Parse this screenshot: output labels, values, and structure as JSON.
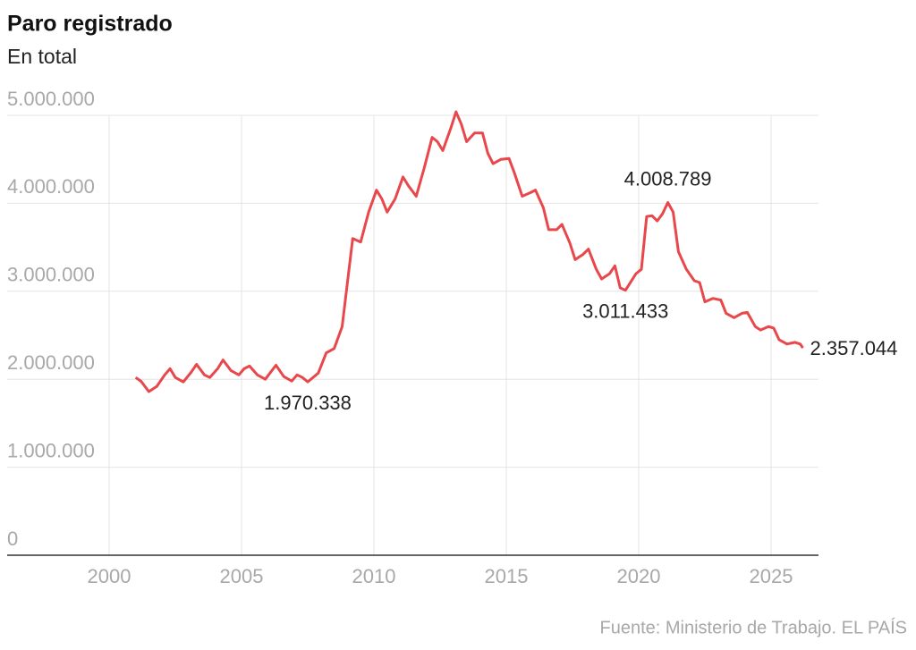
{
  "chart_data": {
    "type": "line",
    "title": "Paro registrado",
    "subtitle": "En total",
    "source": "Fuente: Ministerio de Trabajo. EL PAÍS",
    "color": "#e8474b",
    "xlim": [
      1996.15,
      2026.79
    ],
    "xticks": [
      2000,
      2005,
      2010,
      2015,
      2020,
      2025
    ],
    "ylim": [
      0,
      5000000
    ],
    "yticks": [
      0,
      {
        "value": 1000000,
        "label": "1.000.000"
      },
      {
        "value": 2000000,
        "label": "2.000.000"
      },
      {
        "value": 3000000,
        "label": "3.000.000"
      },
      {
        "value": 4000000,
        "label": "4.000.000"
      },
      {
        "value": 5000000,
        "label": "5.000.000"
      }
    ],
    "grid": true,
    "x": [
      2001.0,
      2001.2,
      2001.5,
      2001.8,
      2002.1,
      2002.3,
      2002.5,
      2002.8,
      2003.1,
      2003.3,
      2003.6,
      2003.8,
      2004.1,
      2004.3,
      2004.6,
      2004.9,
      2005.1,
      2005.3,
      2005.6,
      2005.9,
      2006.1,
      2006.3,
      2006.6,
      2006.9,
      2007.1,
      2007.3,
      2007.5,
      2007.9,
      2008.2,
      2008.5,
      2008.8,
      2009.0,
      2009.2,
      2009.5,
      2009.8,
      2010.1,
      2010.3,
      2010.5,
      2010.8,
      2011.1,
      2011.3,
      2011.6,
      2011.9,
      2012.2,
      2012.4,
      2012.6,
      2012.9,
      2013.1,
      2013.3,
      2013.5,
      2013.8,
      2014.1,
      2014.3,
      2014.5,
      2014.8,
      2015.1,
      2015.3,
      2015.6,
      2015.9,
      2016.1,
      2016.4,
      2016.6,
      2016.9,
      2017.1,
      2017.4,
      2017.6,
      2017.9,
      2018.1,
      2018.4,
      2018.6,
      2018.9,
      2019.1,
      2019.3,
      2019.5,
      2019.9,
      2020.1,
      2020.3,
      2020.5,
      2020.7,
      2020.9,
      2021.1,
      2021.3,
      2021.5,
      2021.8,
      2022.1,
      2022.3,
      2022.5,
      2022.8,
      2023.1,
      2023.3,
      2023.6,
      2023.9,
      2024.1,
      2024.4,
      2024.6,
      2024.9,
      2025.1,
      2025.3,
      2025.6,
      2025.9,
      2026.1,
      2026.2
    ],
    "values": [
      2020000,
      1980000,
      1860000,
      1920000,
      2050000,
      2120000,
      2020000,
      1970000,
      2080000,
      2170000,
      2050000,
      2020000,
      2120000,
      2220000,
      2100000,
      2050000,
      2120000,
      2150000,
      2050000,
      2000000,
      2080000,
      2160000,
      2030000,
      1980000,
      2050000,
      2020000,
      1970338,
      2070000,
      2300000,
      2350000,
      2600000,
      3100000,
      3600000,
      3560000,
      3900000,
      4150000,
      4050000,
      3900000,
      4050000,
      4300000,
      4200000,
      4080000,
      4400000,
      4750000,
      4700000,
      4600000,
      4850000,
      5040000,
      4900000,
      4700000,
      4800000,
      4800000,
      4570000,
      4450000,
      4500000,
      4510000,
      4350000,
      4080000,
      4120000,
      4150000,
      3950000,
      3700000,
      3700000,
      3760000,
      3550000,
      3360000,
      3420000,
      3480000,
      3250000,
      3140000,
      3200000,
      3290000,
      3040000,
      3011433,
      3200000,
      3250000,
      3850000,
      3860000,
      3800000,
      3880000,
      4008789,
      3900000,
      3450000,
      3250000,
      3120000,
      3100000,
      2880000,
      2920000,
      2900000,
      2750000,
      2700000,
      2750000,
      2760000,
      2600000,
      2560000,
      2600000,
      2580000,
      2450000,
      2400000,
      2420000,
      2400000,
      2357044
    ],
    "annotations": [
      {
        "label": "1.970.338",
        "x": 2007.5,
        "value": 1970338
      },
      {
        "label": "3.011.433",
        "x": 2019.5,
        "value": 3011433
      },
      {
        "label": "4.008.789",
        "x": 2021.1,
        "value": 4008789
      },
      {
        "label": "2.357.044",
        "x": 2026.2,
        "value": 2357044
      }
    ]
  }
}
